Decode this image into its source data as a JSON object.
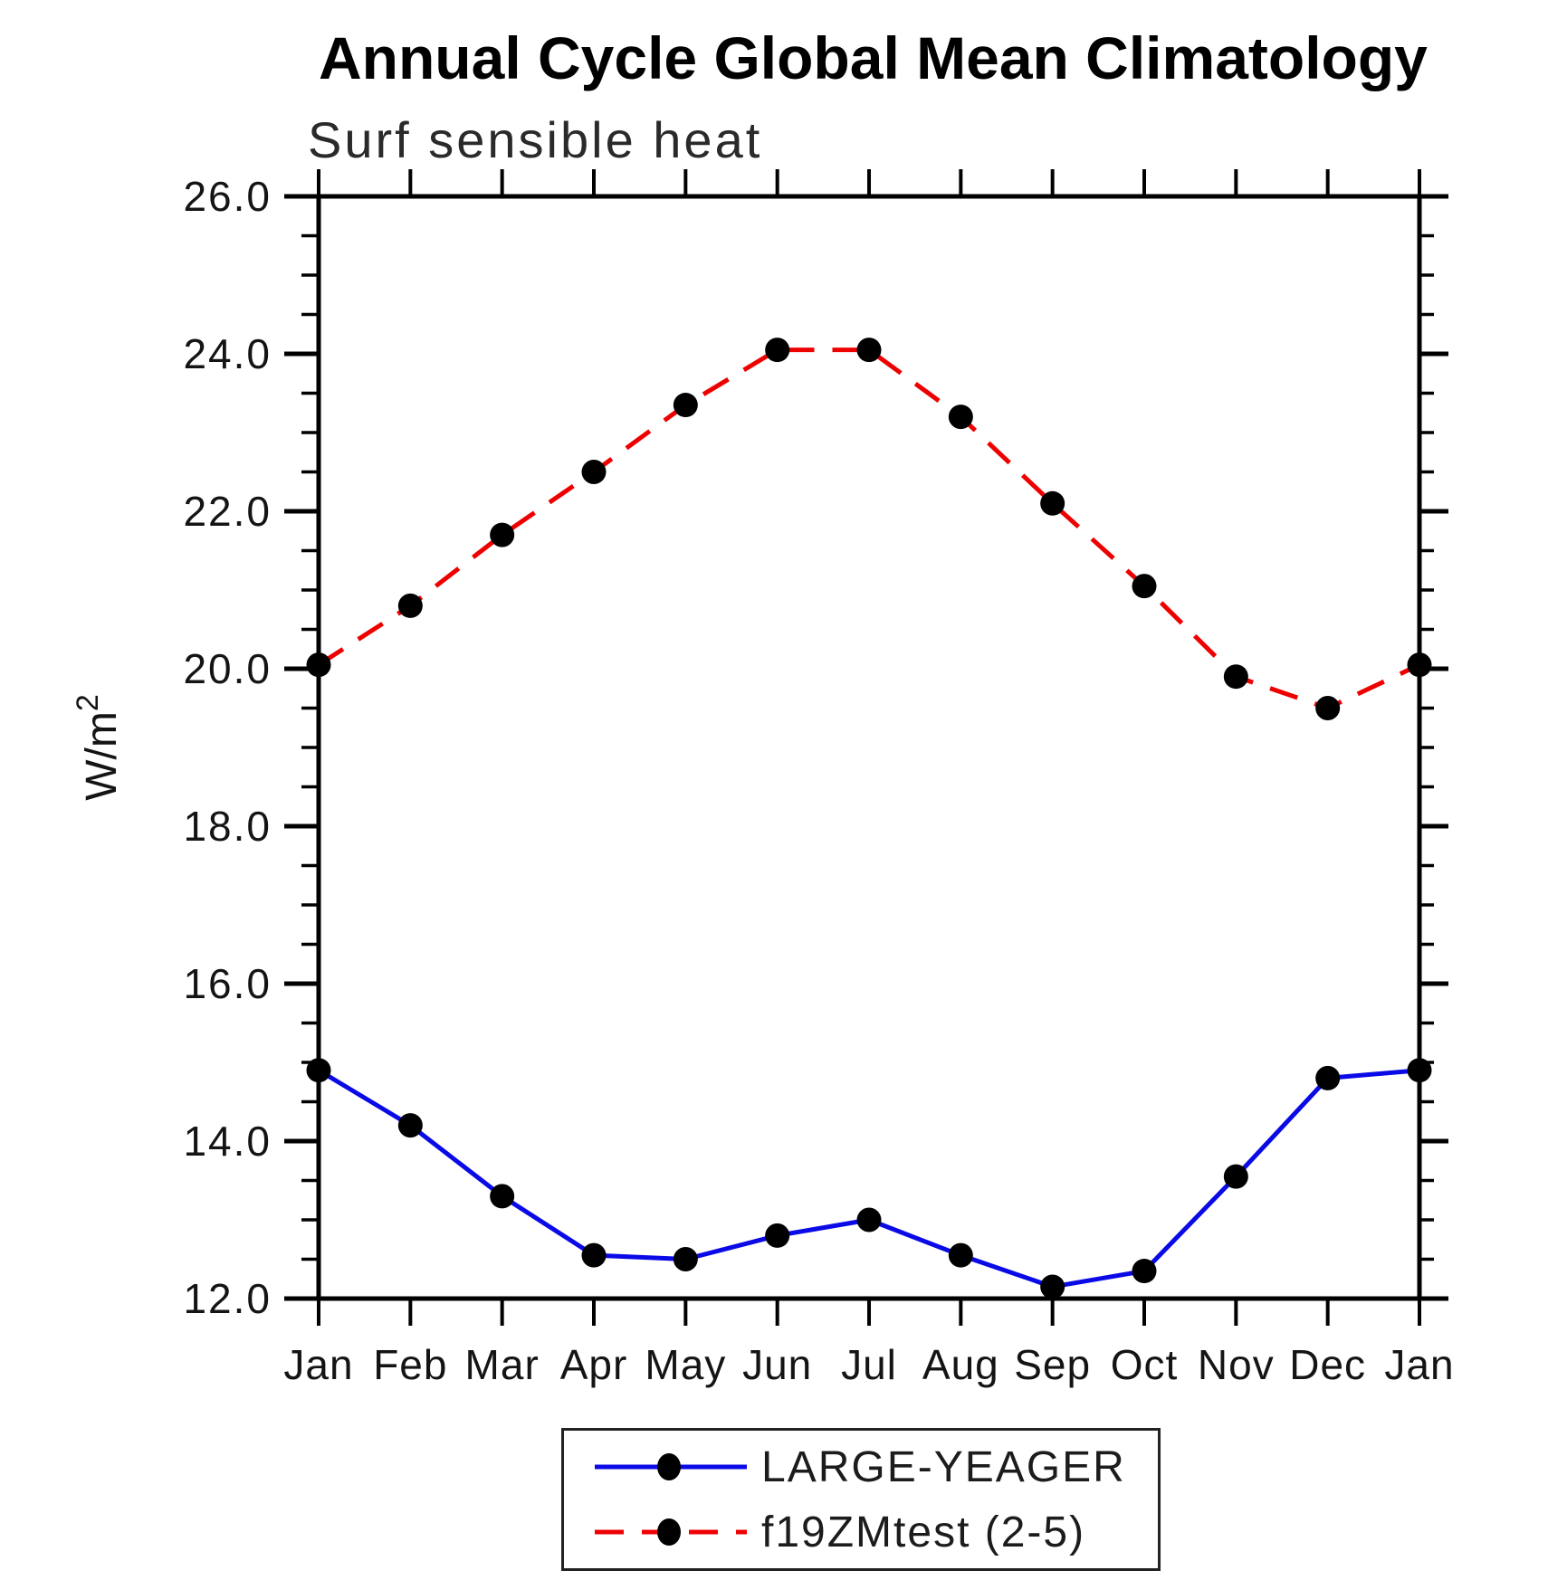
{
  "title": "Annual Cycle Global Mean Climatology",
  "subtitle": "Surf sensible heat",
  "chart_data": {
    "type": "line",
    "title": "Annual Cycle Global Mean Climatology",
    "subtitle": "Surf sensible heat",
    "xlabel": "",
    "ylabel": "W/m²",
    "ylim": [
      12.0,
      26.0
    ],
    "ytick_interval_major": 2.0,
    "ytick_interval_minor": 0.5,
    "ytick_labels": [
      "12.0",
      "14.0",
      "16.0",
      "18.0",
      "20.0",
      "22.0",
      "24.0",
      "26.0"
    ],
    "categories": [
      "Jan",
      "Feb",
      "Mar",
      "Apr",
      "May",
      "Jun",
      "Jul",
      "Aug",
      "Sep",
      "Oct",
      "Nov",
      "Dec",
      "Jan"
    ],
    "grid": false,
    "legend_position": "bottom-center-boxed",
    "series": [
      {
        "name": "LARGE-YEAGER",
        "line_style": "solid",
        "color": "#0A0AE6",
        "marker": "circle",
        "marker_color": "#000000",
        "values": [
          14.9,
          14.2,
          13.3,
          12.55,
          12.5,
          12.8,
          13.0,
          12.55,
          12.15,
          12.35,
          13.55,
          14.8,
          14.9
        ]
      },
      {
        "name": "f19ZMtest (2-5)",
        "line_style": "dashed",
        "color": "#EE0000",
        "marker": "circle",
        "marker_color": "#000000",
        "values": [
          20.05,
          20.8,
          21.7,
          22.5,
          23.35,
          24.05,
          24.05,
          23.2,
          22.1,
          21.05,
          19.9,
          19.5,
          20.05
        ]
      }
    ]
  }
}
